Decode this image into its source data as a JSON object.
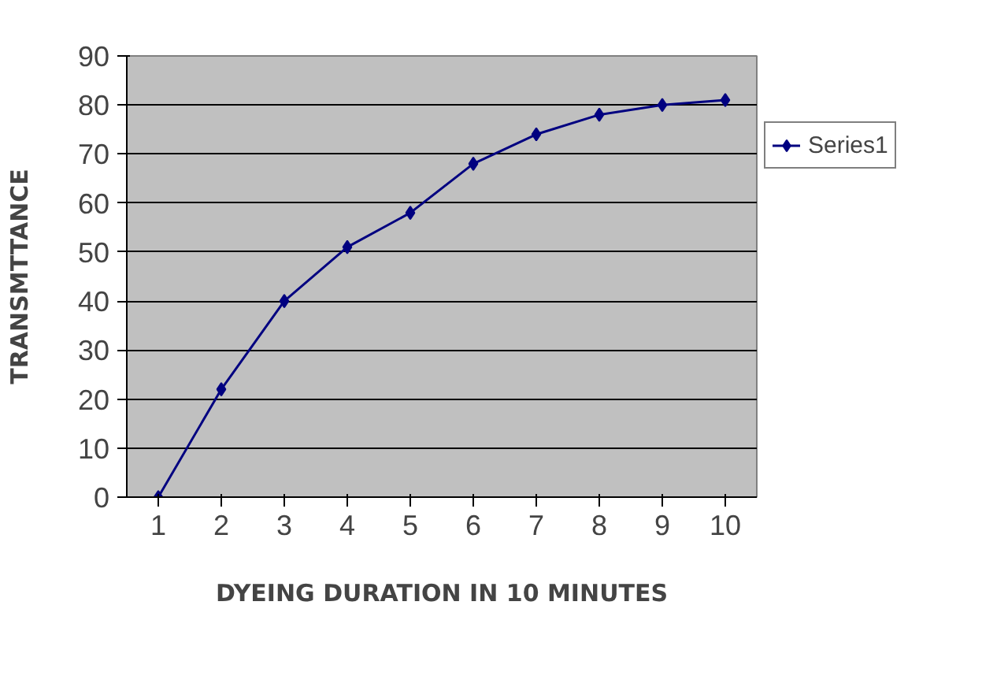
{
  "chart_data": {
    "type": "line",
    "xlabel": "DYEING DURATION IN 10 MINUTES",
    "ylabel": "TRANSMTTANCE",
    "categories": [
      "1",
      "2",
      "3",
      "4",
      "5",
      "6",
      "7",
      "8",
      "9",
      "10"
    ],
    "series": [
      {
        "name": "Series1",
        "color": "#000080",
        "values": [
          0,
          22,
          40,
          51,
          58,
          68,
          74,
          78,
          80,
          81
        ]
      }
    ],
    "ylim": [
      0,
      90
    ],
    "yticks": [
      0,
      10,
      20,
      30,
      40,
      50,
      60,
      70,
      80,
      90
    ],
    "grid": "y",
    "legend": "right",
    "marker": "diamond",
    "line_style": "solid"
  }
}
